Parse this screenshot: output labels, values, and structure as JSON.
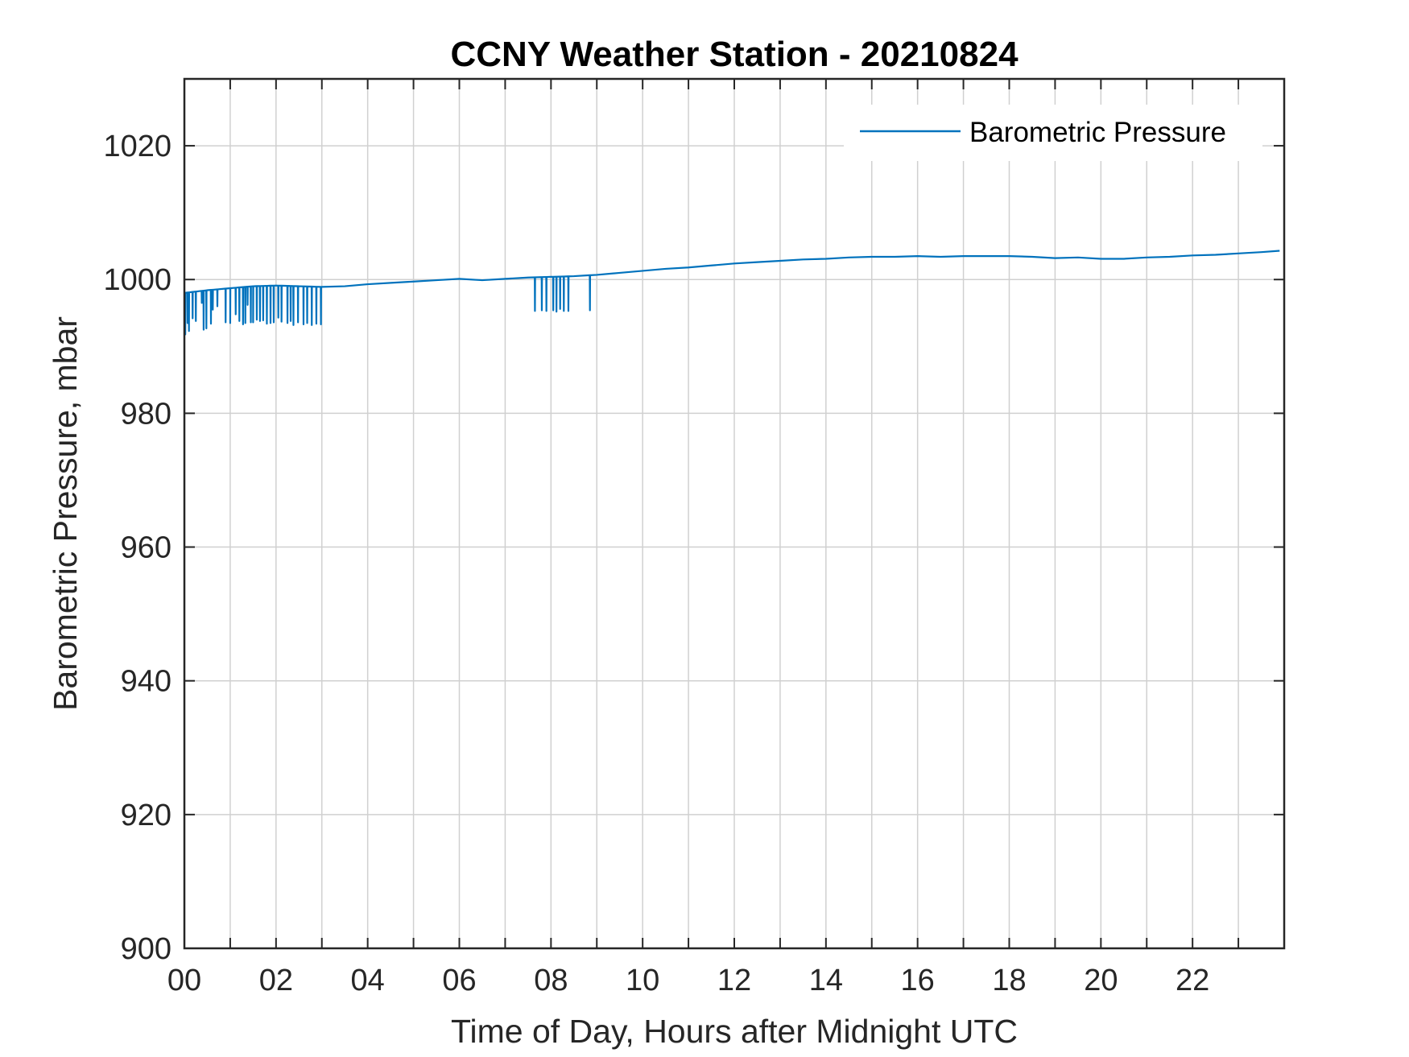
{
  "chart_data": {
    "type": "line",
    "title": "CCNY Weather Station - 20210824",
    "xlabel": "Time of Day, Hours after Midnight UTC",
    "ylabel": "Barometric Pressure, mbar",
    "xlim": [
      0,
      24
    ],
    "ylim": [
      900,
      1030
    ],
    "x_ticks": [
      0,
      2,
      4,
      6,
      8,
      10,
      12,
      14,
      16,
      18,
      20,
      22
    ],
    "x_tick_labels": [
      "00",
      "02",
      "04",
      "06",
      "08",
      "10",
      "12",
      "14",
      "16",
      "18",
      "20",
      "22"
    ],
    "x_minor_ticks": [
      1,
      3,
      5,
      7,
      9,
      11,
      13,
      15,
      17,
      19,
      21,
      23
    ],
    "y_ticks": [
      900,
      920,
      940,
      960,
      980,
      1000,
      1020
    ],
    "y_tick_labels": [
      "900",
      "920",
      "940",
      "960",
      "980",
      "1000",
      "1020"
    ],
    "grid": true,
    "legend": {
      "location": "top-right",
      "entries": [
        "Barometric Pressure"
      ]
    },
    "series": [
      {
        "name": "Barometric Pressure",
        "color": "#0072BD",
        "baseline": [
          [
            0.0,
            998.0
          ],
          [
            0.5,
            998.4
          ],
          [
            1.0,
            998.7
          ],
          [
            1.5,
            999.0
          ],
          [
            2.0,
            999.1
          ],
          [
            2.5,
            999.0
          ],
          [
            3.0,
            998.9
          ],
          [
            3.5,
            999.0
          ],
          [
            4.0,
            999.3
          ],
          [
            4.5,
            999.5
          ],
          [
            5.0,
            999.7
          ],
          [
            5.5,
            999.9
          ],
          [
            6.0,
            1000.1
          ],
          [
            6.5,
            999.9
          ],
          [
            7.0,
            1000.1
          ],
          [
            7.5,
            1000.3
          ],
          [
            8.0,
            1000.4
          ],
          [
            8.5,
            1000.5
          ],
          [
            9.0,
            1000.7
          ],
          [
            9.5,
            1001.0
          ],
          [
            10.0,
            1001.3
          ],
          [
            10.5,
            1001.6
          ],
          [
            11.0,
            1001.8
          ],
          [
            11.5,
            1002.1
          ],
          [
            12.0,
            1002.4
          ],
          [
            12.5,
            1002.6
          ],
          [
            13.0,
            1002.8
          ],
          [
            13.5,
            1003.0
          ],
          [
            14.0,
            1003.1
          ],
          [
            14.5,
            1003.3
          ],
          [
            15.0,
            1003.4
          ],
          [
            15.5,
            1003.4
          ],
          [
            16.0,
            1003.5
          ],
          [
            16.5,
            1003.4
          ],
          [
            17.0,
            1003.5
          ],
          [
            17.5,
            1003.5
          ],
          [
            18.0,
            1003.5
          ],
          [
            18.5,
            1003.4
          ],
          [
            19.0,
            1003.2
          ],
          [
            19.5,
            1003.3
          ],
          [
            20.0,
            1003.1
          ],
          [
            20.5,
            1003.1
          ],
          [
            21.0,
            1003.3
          ],
          [
            21.5,
            1003.4
          ],
          [
            22.0,
            1003.6
          ],
          [
            22.5,
            1003.7
          ],
          [
            23.0,
            1003.9
          ],
          [
            23.5,
            1004.1
          ],
          [
            23.9,
            1004.3
          ]
        ],
        "dips": [
          [
            0.02,
            991.8
          ],
          [
            0.07,
            993.5
          ],
          [
            0.1,
            992.3
          ],
          [
            0.18,
            994.2
          ],
          [
            0.25,
            993.8
          ],
          [
            0.38,
            996.5
          ],
          [
            0.42,
            992.5
          ],
          [
            0.48,
            992.7
          ],
          [
            0.58,
            993.4
          ],
          [
            0.62,
            995.5
          ],
          [
            0.72,
            996.0
          ],
          [
            0.9,
            993.6
          ],
          [
            1.0,
            993.5
          ],
          [
            1.12,
            994.8
          ],
          [
            1.2,
            993.8
          ],
          [
            1.28,
            993.3
          ],
          [
            1.33,
            993.5
          ],
          [
            1.38,
            996.2
          ],
          [
            1.45,
            993.6
          ],
          [
            1.5,
            993.6
          ],
          [
            1.58,
            994.0
          ],
          [
            1.65,
            993.8
          ],
          [
            1.72,
            993.9
          ],
          [
            1.8,
            993.4
          ],
          [
            1.88,
            993.5
          ],
          [
            1.95,
            993.6
          ],
          [
            2.05,
            994.3
          ],
          [
            2.12,
            993.7
          ],
          [
            2.25,
            993.5
          ],
          [
            2.32,
            993.8
          ],
          [
            2.38,
            993.2
          ],
          [
            2.48,
            993.6
          ],
          [
            2.6,
            993.3
          ],
          [
            2.68,
            993.5
          ],
          [
            2.78,
            993.2
          ],
          [
            2.88,
            993.4
          ],
          [
            2.98,
            993.3
          ],
          [
            7.65,
            995.3
          ],
          [
            7.8,
            995.4
          ],
          [
            7.9,
            995.3
          ],
          [
            8.05,
            995.4
          ],
          [
            8.12,
            995.2
          ],
          [
            8.2,
            995.6
          ],
          [
            8.28,
            995.3
          ],
          [
            8.38,
            995.3
          ],
          [
            8.85,
            995.4
          ]
        ]
      }
    ]
  }
}
